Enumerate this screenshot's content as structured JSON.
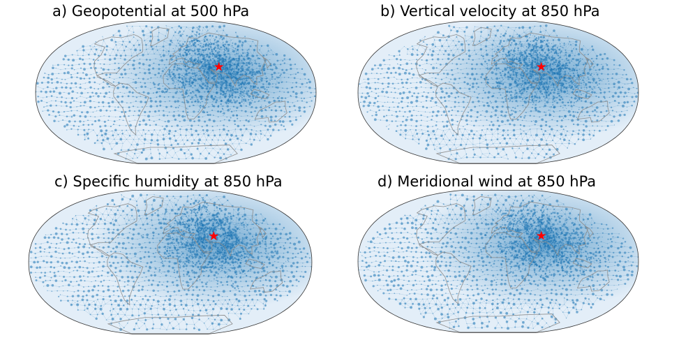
{
  "figure": {
    "panels": [
      {
        "id": "a",
        "title": "a) Geopotential at 500 hPa"
      },
      {
        "id": "b",
        "title": "b) Vertical velocity at 850 hPa"
      },
      {
        "id": "c",
        "title": "c) Specific humidity at 850 hPa"
      },
      {
        "id": "d",
        "title": "d) Meridional wind at 850 hPa"
      }
    ],
    "marker": {
      "symbol": "★",
      "color": "#ff0000"
    },
    "colors": {
      "ocean_base": "#e3eef8",
      "density": "#1f77b4",
      "coastline": "#8c8c8c",
      "outline": "#333333"
    }
  }
}
